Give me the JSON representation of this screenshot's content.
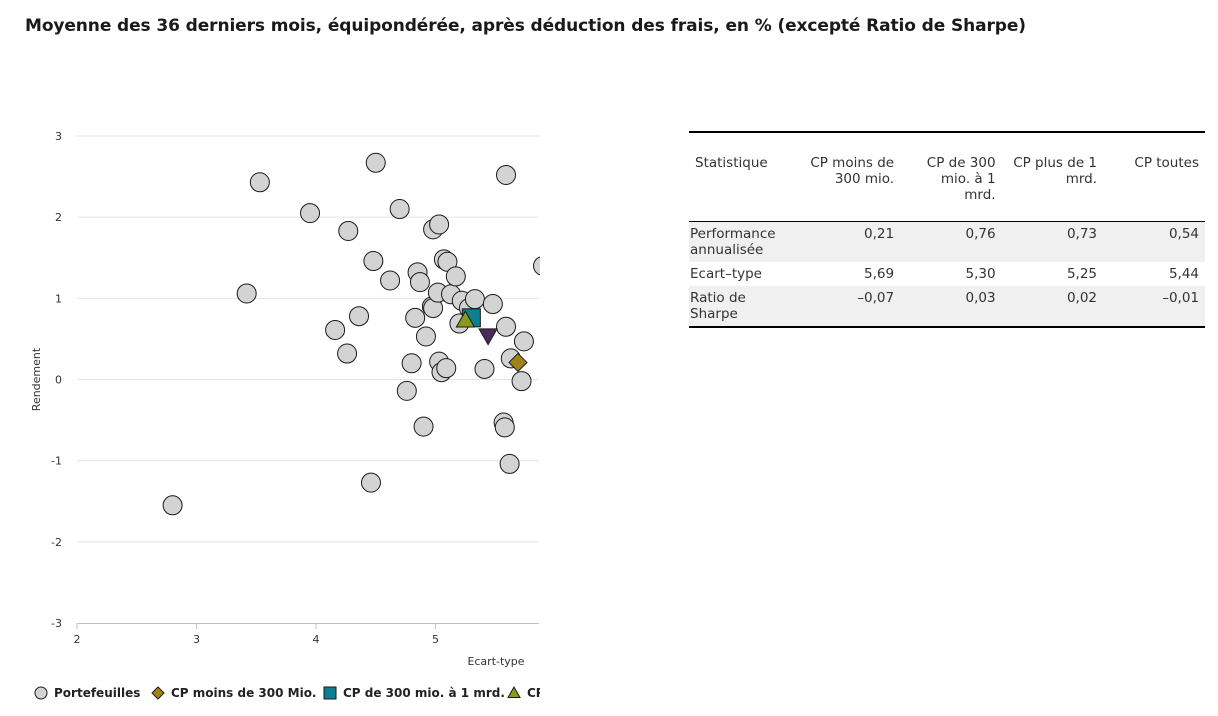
{
  "title": "Moyenne des 36 derniers mois, équipondérée, après déduction des frais, en % (excepté Ratio de Sharpe)",
  "chart_data": {
    "type": "scatter",
    "xlabel": "Ecart-type",
    "ylabel": "Rendement",
    "xlim": [
      2,
      5.85
    ],
    "ylim": [
      -3,
      3
    ],
    "x_ticks": [
      "2",
      "3",
      "4",
      "5"
    ],
    "y_ticks": [
      "3",
      "2",
      "1",
      "0",
      "-1",
      "-2",
      "-3"
    ],
    "grid": true,
    "legend_position": "bottom",
    "series": [
      {
        "name": "Portefeuilles",
        "marker": "circle",
        "color": "#d3d3d3",
        "points": [
          [
            2.8,
            -1.55
          ],
          [
            3.42,
            1.06
          ],
          [
            3.53,
            2.43
          ],
          [
            3.95,
            2.05
          ],
          [
            4.16,
            0.61
          ],
          [
            4.26,
            0.32
          ],
          [
            4.27,
            1.83
          ],
          [
            4.36,
            0.78
          ],
          [
            4.46,
            -1.27
          ],
          [
            4.48,
            1.46
          ],
          [
            4.5,
            2.67
          ],
          [
            4.62,
            1.22
          ],
          [
            4.7,
            2.1
          ],
          [
            4.76,
            -0.14
          ],
          [
            4.8,
            0.2
          ],
          [
            4.83,
            0.76
          ],
          [
            4.85,
            1.32
          ],
          [
            4.87,
            1.2
          ],
          [
            4.9,
            -0.58
          ],
          [
            4.92,
            0.53
          ],
          [
            4.97,
            0.9
          ],
          [
            4.98,
            0.88
          ],
          [
            4.98,
            1.85
          ],
          [
            5.02,
            1.07
          ],
          [
            5.03,
            0.22
          ],
          [
            5.03,
            1.91
          ],
          [
            5.05,
            0.09
          ],
          [
            5.07,
            1.48
          ],
          [
            5.09,
            0.14
          ],
          [
            5.1,
            1.45
          ],
          [
            5.13,
            1.05
          ],
          [
            5.17,
            1.27
          ],
          [
            5.2,
            0.69
          ],
          [
            5.22,
            0.97
          ],
          [
            5.28,
            0.88
          ],
          [
            5.33,
            0.99
          ],
          [
            5.41,
            0.13
          ],
          [
            5.48,
            0.93
          ],
          [
            5.57,
            -0.53
          ],
          [
            5.58,
            -0.59
          ],
          [
            5.59,
            0.65
          ],
          [
            5.59,
            2.52
          ],
          [
            5.62,
            -1.04
          ],
          [
            5.63,
            0.26
          ],
          [
            5.72,
            -0.02
          ],
          [
            5.74,
            0.47
          ],
          [
            5.9,
            1.4
          ]
        ]
      },
      {
        "name": "CP moins de 300 Mio.",
        "marker": "diamond",
        "color": "#a08419",
        "points": [
          [
            5.69,
            0.21
          ]
        ]
      },
      {
        "name": "CP de 300 mio. à 1 mrd.",
        "marker": "square",
        "color": "#0e7f91",
        "points": [
          [
            5.3,
            0.76
          ]
        ]
      },
      {
        "name": "CP plus de 1 mrd.",
        "marker": "triangle-up",
        "color": "#8a9a20",
        "points": [
          [
            5.25,
            0.73
          ]
        ]
      },
      {
        "name": "CP toutes",
        "marker": "triangle-down",
        "color": "#4b2a5c",
        "points": [
          [
            5.44,
            0.54
          ]
        ]
      }
    ]
  },
  "legend": [
    {
      "label": "Portefeuilles",
      "marker": "circle",
      "color": "#d3d3d3"
    },
    {
      "label": "CP moins de 300 Mio.",
      "marker": "diamond",
      "color": "#a08419"
    },
    {
      "label": "CP de 300 mio. à 1 mrd.",
      "marker": "square",
      "color": "#0e7f91"
    },
    {
      "label": "CP",
      "marker": "triangle-up",
      "color": "#8a9a20"
    }
  ],
  "table": {
    "headers": [
      "Statistique",
      "CP moins de 300 mio.",
      "CP de 300 mio. à 1 mrd.",
      "CP plus de 1 mrd.",
      "CP toutes"
    ],
    "rows": [
      {
        "label": "Performance annualisée",
        "values": [
          "0,21",
          "0,76",
          "0,73",
          "0,54"
        ]
      },
      {
        "label": "Ecart–type",
        "values": [
          "5,69",
          "5,30",
          "5,25",
          "5,44"
        ]
      },
      {
        "label": "Ratio de Sharpe",
        "values": [
          "–0,07",
          "0,03",
          "0,02",
          "–0,01"
        ]
      }
    ]
  }
}
